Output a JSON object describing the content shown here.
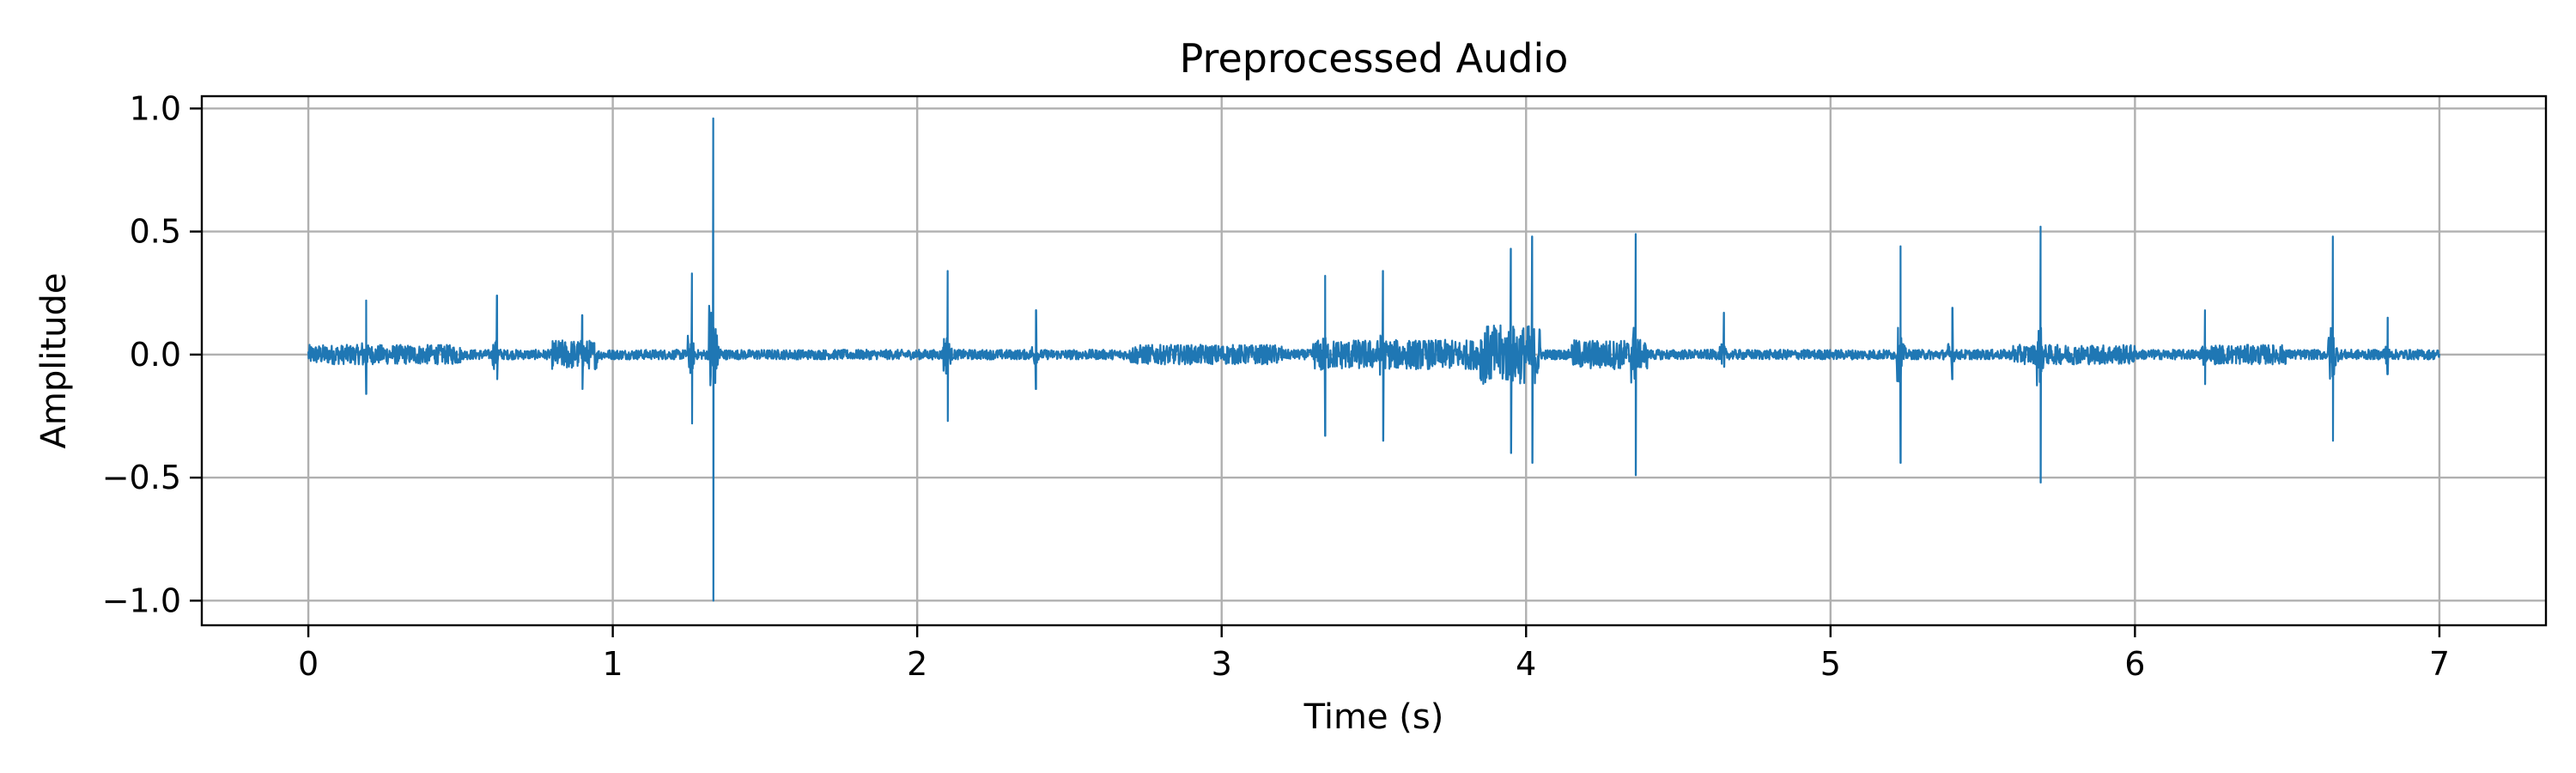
{
  "chart_data": {
    "type": "line",
    "title": "Preprocessed Audio",
    "xlabel": "Time (s)",
    "ylabel": "Amplitude",
    "xlim": [
      -0.35,
      7.35
    ],
    "ylim": [
      -1.1,
      1.05
    ],
    "xticks": [
      0,
      1,
      2,
      3,
      4,
      5,
      6,
      7
    ],
    "xtick_labels": [
      "0",
      "1",
      "2",
      "3",
      "4",
      "5",
      "6",
      "7"
    ],
    "yticks": [
      1.0,
      0.5,
      0.0,
      -0.5,
      -1.0
    ],
    "ytick_labels": [
      "1.0",
      "0.5",
      "0.0",
      "−0.5",
      "−1.0"
    ],
    "grid": true,
    "colors": {
      "series": "#1f77b4",
      "grid": "#b0b0b0"
    },
    "series": [
      {
        "duration_s": 7.0,
        "background_amplitude": 0.02,
        "noisy_regions": [
          {
            "start": 0.0,
            "end": 0.5,
            "amp": 0.04
          },
          {
            "start": 0.8,
            "end": 0.95,
            "amp": 0.06
          },
          {
            "start": 2.7,
            "end": 3.2,
            "amp": 0.04
          },
          {
            "start": 3.3,
            "end": 4.05,
            "amp": 0.06
          },
          {
            "start": 3.85,
            "end": 4.05,
            "amp": 0.12
          },
          {
            "start": 4.15,
            "end": 4.4,
            "amp": 0.06
          },
          {
            "start": 5.6,
            "end": 6.0,
            "amp": 0.04
          },
          {
            "start": 6.25,
            "end": 6.5,
            "amp": 0.04
          }
        ],
        "peaks": [
          {
            "t": 0.19,
            "max": 0.22,
            "min": -0.16
          },
          {
            "t": 0.62,
            "max": 0.24,
            "min": -0.1
          },
          {
            "t": 0.9,
            "max": 0.16,
            "min": -0.14
          },
          {
            "t": 1.26,
            "max": 0.33,
            "min": -0.28
          },
          {
            "t": 1.33,
            "max": 0.96,
            "min": -1.0
          },
          {
            "t": 2.1,
            "max": 0.34,
            "min": -0.27
          },
          {
            "t": 2.39,
            "max": 0.18,
            "min": -0.14
          },
          {
            "t": 3.34,
            "max": 0.32,
            "min": -0.33
          },
          {
            "t": 3.53,
            "max": 0.34,
            "min": -0.35
          },
          {
            "t": 3.95,
            "max": 0.43,
            "min": -0.4
          },
          {
            "t": 4.02,
            "max": 0.48,
            "min": -0.44
          },
          {
            "t": 4.36,
            "max": 0.49,
            "min": -0.49
          },
          {
            "t": 4.65,
            "max": 0.17,
            "min": -0.05
          },
          {
            "t": 5.23,
            "max": 0.44,
            "min": -0.44
          },
          {
            "t": 5.4,
            "max": 0.19,
            "min": -0.1
          },
          {
            "t": 5.69,
            "max": 0.52,
            "min": -0.52
          },
          {
            "t": 6.23,
            "max": 0.18,
            "min": -0.12
          },
          {
            "t": 6.65,
            "max": 0.48,
            "min": -0.35
          },
          {
            "t": 6.83,
            "max": 0.15,
            "min": -0.08
          }
        ]
      }
    ]
  }
}
